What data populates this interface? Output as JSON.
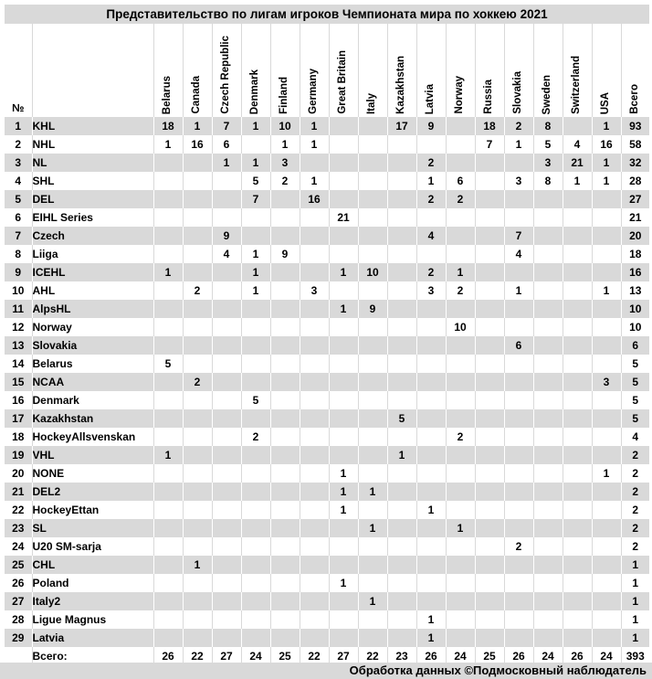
{
  "chart_data": {
    "type": "table",
    "title": "Представительство по лигам игроков Чемпионата мира по хоккею 2021",
    "row_number_header": "№",
    "columns": [
      "Belarus",
      "Canada",
      "Czech Republic",
      "Denmark",
      "Finland",
      "Germany",
      "Great Britain",
      "Italy",
      "Kazakhstan",
      "Latvia",
      "Norway",
      "Russia",
      "Slovakia",
      "Sweden",
      "Switzerland",
      "USA",
      "Всего"
    ],
    "rows": [
      {
        "num": "1",
        "league": "KHL",
        "values": [
          "18",
          "1",
          "7",
          "1",
          "10",
          "1",
          "",
          "",
          "17",
          "9",
          "",
          "18",
          "2",
          "8",
          "",
          "1",
          "93"
        ]
      },
      {
        "num": "2",
        "league": "NHL",
        "values": [
          "1",
          "16",
          "6",
          "",
          "1",
          "1",
          "",
          "",
          "",
          "",
          "",
          "7",
          "1",
          "5",
          "4",
          "16",
          "58"
        ]
      },
      {
        "num": "3",
        "league": "NL",
        "values": [
          "",
          "",
          "1",
          "1",
          "3",
          "",
          "",
          "",
          "",
          "2",
          "",
          "",
          "",
          "3",
          "21",
          "1",
          "32"
        ]
      },
      {
        "num": "4",
        "league": "SHL",
        "values": [
          "",
          "",
          "",
          "5",
          "2",
          "1",
          "",
          "",
          "",
          "1",
          "6",
          "",
          "3",
          "8",
          "1",
          "1",
          "28"
        ]
      },
      {
        "num": "5",
        "league": "DEL",
        "values": [
          "",
          "",
          "",
          "7",
          "",
          "16",
          "",
          "",
          "",
          "2",
          "2",
          "",
          "",
          "",
          "",
          "",
          "27"
        ]
      },
      {
        "num": "6",
        "league": "EIHL Series",
        "values": [
          "",
          "",
          "",
          "",
          "",
          "",
          "21",
          "",
          "",
          "",
          "",
          "",
          "",
          "",
          "",
          "",
          "21"
        ]
      },
      {
        "num": "7",
        "league": "Czech",
        "values": [
          "",
          "",
          "9",
          "",
          "",
          "",
          "",
          "",
          "",
          "4",
          "",
          "",
          "7",
          "",
          "",
          "",
          "20"
        ]
      },
      {
        "num": "8",
        "league": "Liiga",
        "values": [
          "",
          "",
          "4",
          "1",
          "9",
          "",
          "",
          "",
          "",
          "",
          "",
          "",
          "4",
          "",
          "",
          "",
          "18"
        ]
      },
      {
        "num": "9",
        "league": "ICEHL",
        "values": [
          "1",
          "",
          "",
          "1",
          "",
          "",
          "1",
          "10",
          "",
          "2",
          "1",
          "",
          "",
          "",
          "",
          "",
          "16"
        ]
      },
      {
        "num": "10",
        "league": "AHL",
        "values": [
          "",
          "2",
          "",
          "1",
          "",
          "3",
          "",
          "",
          "",
          "3",
          "2",
          "",
          "1",
          "",
          "",
          "1",
          "13"
        ]
      },
      {
        "num": "11",
        "league": "AlpsHL",
        "values": [
          "",
          "",
          "",
          "",
          "",
          "",
          "1",
          "9",
          "",
          "",
          "",
          "",
          "",
          "",
          "",
          "",
          "10"
        ]
      },
      {
        "num": "12",
        "league": "Norway",
        "values": [
          "",
          "",
          "",
          "",
          "",
          "",
          "",
          "",
          "",
          "",
          "10",
          "",
          "",
          "",
          "",
          "",
          "10"
        ]
      },
      {
        "num": "13",
        "league": "Slovakia",
        "values": [
          "",
          "",
          "",
          "",
          "",
          "",
          "",
          "",
          "",
          "",
          "",
          "",
          "6",
          "",
          "",
          "",
          "6"
        ]
      },
      {
        "num": "14",
        "league": "Belarus",
        "values": [
          "5",
          "",
          "",
          "",
          "",
          "",
          "",
          "",
          "",
          "",
          "",
          "",
          "",
          "",
          "",
          "",
          "5"
        ]
      },
      {
        "num": "15",
        "league": "NCAA",
        "values": [
          "",
          "2",
          "",
          "",
          "",
          "",
          "",
          "",
          "",
          "",
          "",
          "",
          "",
          "",
          "",
          "3",
          "5"
        ]
      },
      {
        "num": "16",
        "league": "Denmark",
        "values": [
          "",
          "",
          "",
          "5",
          "",
          "",
          "",
          "",
          "",
          "",
          "",
          "",
          "",
          "",
          "",
          "",
          "5"
        ]
      },
      {
        "num": "17",
        "league": "Kazakhstan",
        "values": [
          "",
          "",
          "",
          "",
          "",
          "",
          "",
          "",
          "5",
          "",
          "",
          "",
          "",
          "",
          "",
          "",
          "5"
        ]
      },
      {
        "num": "18",
        "league": "HockeyAllsvenskan",
        "values": [
          "",
          "",
          "",
          "2",
          "",
          "",
          "",
          "",
          "",
          "",
          "2",
          "",
          "",
          "",
          "",
          "",
          "4"
        ]
      },
      {
        "num": "19",
        "league": "VHL",
        "values": [
          "1",
          "",
          "",
          "",
          "",
          "",
          "",
          "",
          "1",
          "",
          "",
          "",
          "",
          "",
          "",
          "",
          "2"
        ]
      },
      {
        "num": "20",
        "league": "NONE",
        "values": [
          "",
          "",
          "",
          "",
          "",
          "",
          "1",
          "",
          "",
          "",
          "",
          "",
          "",
          "",
          "",
          "1",
          "2"
        ]
      },
      {
        "num": "21",
        "league": "DEL2",
        "values": [
          "",
          "",
          "",
          "",
          "",
          "",
          "1",
          "1",
          "",
          "",
          "",
          "",
          "",
          "",
          "",
          "",
          "2"
        ]
      },
      {
        "num": "22",
        "league": "HockeyEttan",
        "values": [
          "",
          "",
          "",
          "",
          "",
          "",
          "1",
          "",
          "",
          "1",
          "",
          "",
          "",
          "",
          "",
          "",
          "2"
        ]
      },
      {
        "num": "23",
        "league": "SL",
        "values": [
          "",
          "",
          "",
          "",
          "",
          "",
          "",
          "1",
          "",
          "",
          "1",
          "",
          "",
          "",
          "",
          "",
          "2"
        ]
      },
      {
        "num": "24",
        "league": "U20 SM-sarja",
        "values": [
          "",
          "",
          "",
          "",
          "",
          "",
          "",
          "",
          "",
          "",
          "",
          "",
          "2",
          "",
          "",
          "",
          "2"
        ]
      },
      {
        "num": "25",
        "league": "CHL",
        "values": [
          "",
          "1",
          "",
          "",
          "",
          "",
          "",
          "",
          "",
          "",
          "",
          "",
          "",
          "",
          "",
          "",
          "1"
        ]
      },
      {
        "num": "26",
        "league": "Poland",
        "values": [
          "",
          "",
          "",
          "",
          "",
          "",
          "1",
          "",
          "",
          "",
          "",
          "",
          "",
          "",
          "",
          "",
          "1"
        ]
      },
      {
        "num": "27",
        "league": "Italy2",
        "values": [
          "",
          "",
          "",
          "",
          "",
          "",
          "",
          "1",
          "",
          "",
          "",
          "",
          "",
          "",
          "",
          "",
          "1"
        ]
      },
      {
        "num": "28",
        "league": "Ligue Magnus",
        "values": [
          "",
          "",
          "",
          "",
          "",
          "",
          "",
          "",
          "",
          "1",
          "",
          "",
          "",
          "",
          "",
          "",
          "1"
        ]
      },
      {
        "num": "29",
        "league": "Latvia",
        "values": [
          "",
          "",
          "",
          "",
          "",
          "",
          "",
          "",
          "",
          "1",
          "",
          "",
          "",
          "",
          "",
          "",
          "1"
        ]
      }
    ],
    "totals_label": "Всего:",
    "totals": [
      "26",
      "22",
      "27",
      "24",
      "25",
      "22",
      "27",
      "22",
      "23",
      "26",
      "24",
      "25",
      "26",
      "24",
      "26",
      "24",
      "393"
    ],
    "footer": "Обработка данных ©Подмосковный наблюдатель"
  },
  "colors": {
    "band_gray": "#d9d9d9",
    "background": "#ffffff",
    "text": "#000000"
  }
}
